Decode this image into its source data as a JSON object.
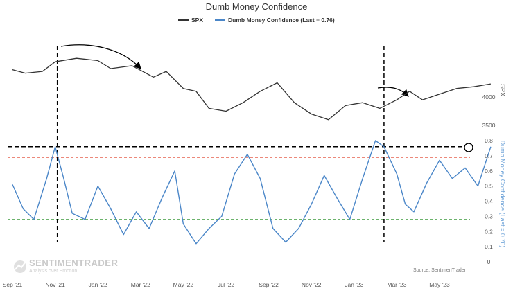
{
  "chart_data": {
    "type": "line",
    "title": "Dumb Money Confidence",
    "legend": [
      {
        "label": "SPX",
        "color": "#333333"
      },
      {
        "label": "Dumb Money Confidence (Last = 0.76)",
        "color": "#4a86c8"
      }
    ],
    "x_tick_labels": [
      "Sep '21",
      "Nov '21",
      "Jan '22",
      "Mar '22",
      "May '22",
      "Jul '22",
      "Sep '22",
      "Nov '22",
      "Jan '23",
      "Mar '23",
      "May '23"
    ],
    "spx_axis": {
      "label": "SPX",
      "ticks": [
        4000,
        3500
      ],
      "ylim": [
        3500,
        4800
      ]
    },
    "dmc_axis": {
      "label": "Dumb Money Confidence (Last = 0.76)",
      "ticks": [
        0,
        0.1,
        0.2,
        0.3,
        0.4,
        0.5,
        0.6,
        0.7,
        0.8
      ],
      "ylim": [
        0,
        0.8
      ]
    },
    "series": [
      {
        "name": "SPX",
        "x": [
          0,
          0.3,
          0.7,
          1.0,
          1.5,
          2.0,
          2.3,
          2.8,
          3.3,
          3.6,
          4.0,
          4.3,
          4.6,
          5.0,
          5.4,
          5.8,
          6.2,
          6.6,
          7.0,
          7.4,
          7.8,
          8.2,
          8.6,
          9.0,
          9.3,
          9.6,
          10.0,
          10.4,
          10.8,
          11.2
        ],
        "values": [
          4480,
          4420,
          4450,
          4620,
          4680,
          4640,
          4500,
          4550,
          4350,
          4450,
          4150,
          4100,
          3800,
          3750,
          3900,
          4100,
          4250,
          3900,
          3700,
          3600,
          3850,
          3900,
          3800,
          3950,
          4100,
          3950,
          4050,
          4150,
          4180,
          4230
        ]
      },
      {
        "name": "Dumb Money Confidence",
        "x": [
          0,
          0.25,
          0.5,
          0.8,
          1.0,
          1.2,
          1.4,
          1.7,
          2.0,
          2.3,
          2.6,
          2.9,
          3.2,
          3.5,
          3.8,
          4.0,
          4.3,
          4.6,
          4.9,
          5.2,
          5.5,
          5.8,
          6.1,
          6.4,
          6.7,
          7.0,
          7.3,
          7.6,
          7.9,
          8.2,
          8.5,
          8.7,
          9.0,
          9.2,
          9.4,
          9.7,
          10.0,
          10.3,
          10.6,
          10.9,
          11.2
        ],
        "values": [
          0.51,
          0.35,
          0.28,
          0.55,
          0.76,
          0.55,
          0.32,
          0.28,
          0.5,
          0.35,
          0.18,
          0.33,
          0.22,
          0.42,
          0.6,
          0.25,
          0.12,
          0.22,
          0.3,
          0.58,
          0.71,
          0.55,
          0.22,
          0.13,
          0.22,
          0.38,
          0.57,
          0.42,
          0.28,
          0.55,
          0.8,
          0.76,
          0.58,
          0.38,
          0.33,
          0.52,
          0.67,
          0.55,
          0.62,
          0.5,
          0.76
        ]
      }
    ],
    "reference_lines": [
      {
        "name": "upper extreme",
        "value": 0.76,
        "color": "#000000"
      },
      {
        "name": "red threshold",
        "value": 0.69,
        "color": "#e0402a"
      },
      {
        "name": "green threshold",
        "value": 0.28,
        "color": "#3b9a3b"
      }
    ],
    "event_markers_x": [
      1.05,
      8.7
    ],
    "watermark": {
      "brand": "SENTIMENTRADER",
      "tagline": "Analysis over Emotion"
    },
    "source": "Source: SentimenTrader"
  }
}
